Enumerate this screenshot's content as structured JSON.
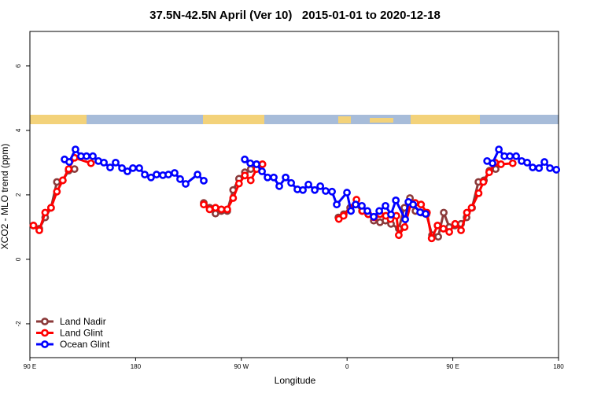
{
  "chart_data": {
    "type": "line",
    "title": "37.5N-42.5N April (Ver 10)   2015-01-01 to 2020-12-18",
    "xlabel": "Longitude",
    "ylabel": "XCO2 - MLO trend (ppm)",
    "xlim": [
      90,
      540
    ],
    "ylim": [
      -3.05,
      7.07
    ],
    "xticks": [
      {
        "value": 90,
        "label": "90 E"
      },
      {
        "value": 180,
        "label": "180"
      },
      {
        "value": 270,
        "label": "90 W"
      },
      {
        "value": 360,
        "label": "0"
      },
      {
        "value": 450,
        "label": "90 E"
      },
      {
        "value": 540,
        "label": "180"
      }
    ],
    "yticks": [
      -2,
      0,
      2,
      4,
      6
    ],
    "legend": "bottom-left",
    "series": [
      {
        "name": "Land Nadir",
        "color": "#8b3a3a",
        "x": [
          93,
          98,
          103,
          108,
          113,
          118,
          123,
          128,
          180,
          238,
          243,
          248,
          253,
          258,
          263,
          268,
          273,
          278,
          283,
          320,
          352.6,
          357.2,
          362.6,
          367.3,
          372.7,
          378,
          382.7,
          388,
          392.7,
          397.4,
          404,
          408.8,
          413.5,
          418.2,
          422.9,
          427.6,
          432.3,
          437.6,
          442.3,
          447,
          451.7,
          457,
          461.7,
          466.4,
          471.8,
          476.5,
          481.2,
          486.5
        ],
        "values": [
          1.05,
          0.95,
          1.3,
          1.6,
          2.4,
          2.45,
          2.75,
          2.8,
          null,
          1.75,
          1.6,
          1.42,
          1.5,
          1.5,
          2.15,
          2.5,
          2.7,
          2.8,
          2.95,
          null,
          1.3,
          1.4,
          1.6,
          1.7,
          1.5,
          1.4,
          1.2,
          1.15,
          1.2,
          1.1,
          0.95,
          1.6,
          1.9,
          1.5,
          1.45,
          1.4,
          0.75,
          0.7,
          1.45,
          1.0,
          1.05,
          1.1,
          1.3,
          1.6,
          2.4,
          2.45,
          2.75,
          2.8
        ]
      },
      {
        "name": "Land Glint",
        "color": "#ff0000",
        "x": [
          93,
          98,
          103,
          108,
          113,
          118,
          123,
          128,
          142,
          190,
          238,
          243,
          248,
          253,
          258,
          263,
          268,
          273,
          278,
          283,
          288,
          320,
          353,
          357,
          368,
          373,
          378,
          383,
          388,
          393,
          397,
          402,
          404,
          409,
          414,
          418,
          423,
          428,
          432,
          437,
          442,
          447,
          452,
          457,
          462,
          466,
          472,
          476,
          481,
          486,
          491,
          501
        ],
        "values": [
          1.05,
          0.9,
          1.45,
          1.6,
          2.1,
          2.45,
          2.8,
          3.15,
          2.98,
          null,
          1.7,
          1.55,
          1.6,
          1.55,
          1.55,
          1.9,
          2.35,
          2.6,
          2.45,
          2.8,
          2.95,
          null,
          1.25,
          1.35,
          1.85,
          1.5,
          1.4,
          1.3,
          1.4,
          1.35,
          1.25,
          1.35,
          0.75,
          1.0,
          1.7,
          1.75,
          1.7,
          1.45,
          0.65,
          1.05,
          0.95,
          0.85,
          1.1,
          0.9,
          1.45,
          1.6,
          2.05,
          2.4,
          2.7,
          3.0,
          2.95,
          2.98
        ]
      },
      {
        "name": "Ocean Glint",
        "color": "#0000ff",
        "x": [
          119.5,
          123.5,
          128.8,
          133.5,
          138.2,
          143.6,
          148.3,
          153,
          158.3,
          163,
          168.4,
          173,
          177.7,
          183.1,
          187.8,
          193.1,
          197.8,
          203.2,
          207.9,
          213.2,
          217.9,
          222.6,
          232.7,
          238,
          255,
          272.9,
          277.6,
          282.9,
          287.6,
          292.3,
          297.6,
          302.3,
          307.7,
          312.4,
          317.7,
          322.4,
          327.1,
          332.5,
          337.2,
          341.8,
          347.2,
          351.2,
          359.9,
          363.3,
          367.3,
          372.6,
          377.3,
          382.7,
          387.4,
          392.7,
          397.4,
          401.5,
          409.5,
          412.2,
          416.2,
          422.2,
          426.9,
          450,
          479.2,
          483.8,
          489.2,
          493.9,
          498.6,
          503.9,
          508.6,
          513.3,
          518,
          523.4,
          528,
          532.7,
          538.1
        ],
        "values": [
          3.1,
          3.02,
          3.41,
          3.2,
          3.2,
          3.2,
          3.05,
          3.0,
          2.85,
          3.0,
          2.83,
          2.73,
          2.83,
          2.83,
          2.63,
          2.54,
          2.63,
          2.61,
          2.63,
          2.68,
          2.49,
          2.34,
          2.63,
          2.44,
          null,
          3.1,
          2.98,
          2.95,
          2.73,
          2.54,
          2.54,
          2.27,
          2.54,
          2.37,
          2.17,
          2.15,
          2.32,
          2.15,
          2.27,
          2.12,
          2.1,
          1.7,
          2.07,
          1.5,
          1.7,
          1.66,
          1.5,
          1.32,
          1.5,
          1.66,
          1.39,
          1.83,
          1.24,
          1.78,
          1.7,
          1.46,
          1.41,
          null,
          3.05,
          2.98,
          3.41,
          3.2,
          3.2,
          3.2,
          3.05,
          3.0,
          2.85,
          2.83,
          3.02,
          2.83,
          2.78
        ]
      }
    ]
  }
}
